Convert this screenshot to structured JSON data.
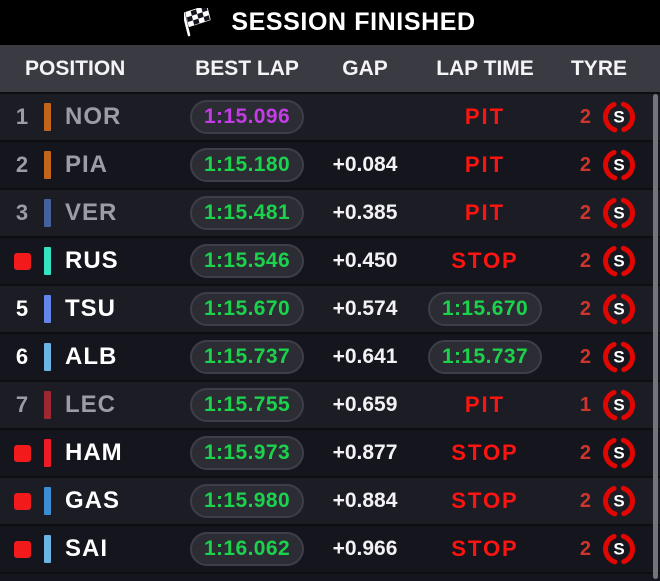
{
  "header": {
    "title": "SESSION FINISHED",
    "icon": "checkered-flag"
  },
  "columns": [
    "POSITION",
    "BEST LAP",
    "GAP",
    "LAP TIME",
    "TYRE"
  ],
  "colors": {
    "title_bar_bg": "#000000",
    "header_row_bg": "#3a3a43",
    "row_bg_odd": "#1c1c25",
    "row_bg_even": "#15151d",
    "best_lap_purple": "#c43ce6",
    "lap_green": "#1bd24b",
    "pit_stop_red": "#fb1410",
    "stopped_square_red": "#f21a1a",
    "tyre_ring_red": "#e10600",
    "tyre_count_red": "#cf352c",
    "dimmed_text": "#9b9ca6",
    "pill_bg": "#2c2c35"
  },
  "icons": {
    "title": "checkered-flag-icon",
    "tyre": "soft-tyre-icon"
  },
  "rows": [
    {
      "position": "1",
      "stopped": false,
      "dimmed": true,
      "team_color": "#c2641c",
      "driver": "NOR",
      "best_lap": "1:15.096",
      "best_lap_color": "purple",
      "gap": "",
      "lap_time": "PIT",
      "lap_time_style": "pit-label",
      "tyre_count": "2",
      "tyre_compound": "S"
    },
    {
      "position": "2",
      "stopped": false,
      "dimmed": true,
      "team_color": "#c2641c",
      "driver": "PIA",
      "best_lap": "1:15.180",
      "best_lap_color": "green",
      "gap": "+0.084",
      "lap_time": "PIT",
      "lap_time_style": "pit-label",
      "tyre_count": "2",
      "tyre_compound": "S"
    },
    {
      "position": "3",
      "stopped": false,
      "dimmed": true,
      "team_color": "#46619b",
      "driver": "VER",
      "best_lap": "1:15.481",
      "best_lap_color": "green",
      "gap": "+0.385",
      "lap_time": "PIT",
      "lap_time_style": "pit-label",
      "tyre_count": "2",
      "tyre_compound": "S"
    },
    {
      "position": "",
      "stopped": true,
      "dimmed": false,
      "team_color": "#35e3c3",
      "driver": "RUS",
      "best_lap": "1:15.546",
      "best_lap_color": "green",
      "gap": "+0.450",
      "lap_time": "STOP",
      "lap_time_style": "pit-label",
      "tyre_count": "2",
      "tyre_compound": "S"
    },
    {
      "position": "5",
      "stopped": false,
      "dimmed": false,
      "team_color": "#6287e8",
      "driver": "TSU",
      "best_lap": "1:15.670",
      "best_lap_color": "green",
      "gap": "+0.574",
      "lap_time": "1:15.670",
      "lap_time_style": "time-pill",
      "tyre_count": "2",
      "tyre_compound": "S"
    },
    {
      "position": "6",
      "stopped": false,
      "dimmed": false,
      "team_color": "#6ab4e6",
      "driver": "ALB",
      "best_lap": "1:15.737",
      "best_lap_color": "green",
      "gap": "+0.641",
      "lap_time": "1:15.737",
      "lap_time_style": "time-pill",
      "tyre_count": "2",
      "tyre_compound": "S"
    },
    {
      "position": "7",
      "stopped": false,
      "dimmed": true,
      "team_color": "#9e2731",
      "driver": "LEC",
      "best_lap": "1:15.755",
      "best_lap_color": "green",
      "gap": "+0.659",
      "lap_time": "PIT",
      "lap_time_style": "pit-label",
      "tyre_count": "1",
      "tyre_compound": "S"
    },
    {
      "position": "",
      "stopped": true,
      "dimmed": false,
      "team_color": "#ee1b24",
      "driver": "HAM",
      "best_lap": "1:15.973",
      "best_lap_color": "green",
      "gap": "+0.877",
      "lap_time": "STOP",
      "lap_time_style": "pit-label",
      "tyre_count": "2",
      "tyre_compound": "S"
    },
    {
      "position": "",
      "stopped": true,
      "dimmed": false,
      "team_color": "#3a8ed2",
      "driver": "GAS",
      "best_lap": "1:15.980",
      "best_lap_color": "green",
      "gap": "+0.884",
      "lap_time": "STOP",
      "lap_time_style": "pit-label",
      "tyre_count": "2",
      "tyre_compound": "S"
    },
    {
      "position": "",
      "stopped": true,
      "dimmed": false,
      "team_color": "#6ab4e6",
      "driver": "SAI",
      "best_lap": "1:16.062",
      "best_lap_color": "green",
      "gap": "+0.966",
      "lap_time": "STOP",
      "lap_time_style": "pit-label",
      "tyre_count": "2",
      "tyre_compound": "S"
    }
  ]
}
